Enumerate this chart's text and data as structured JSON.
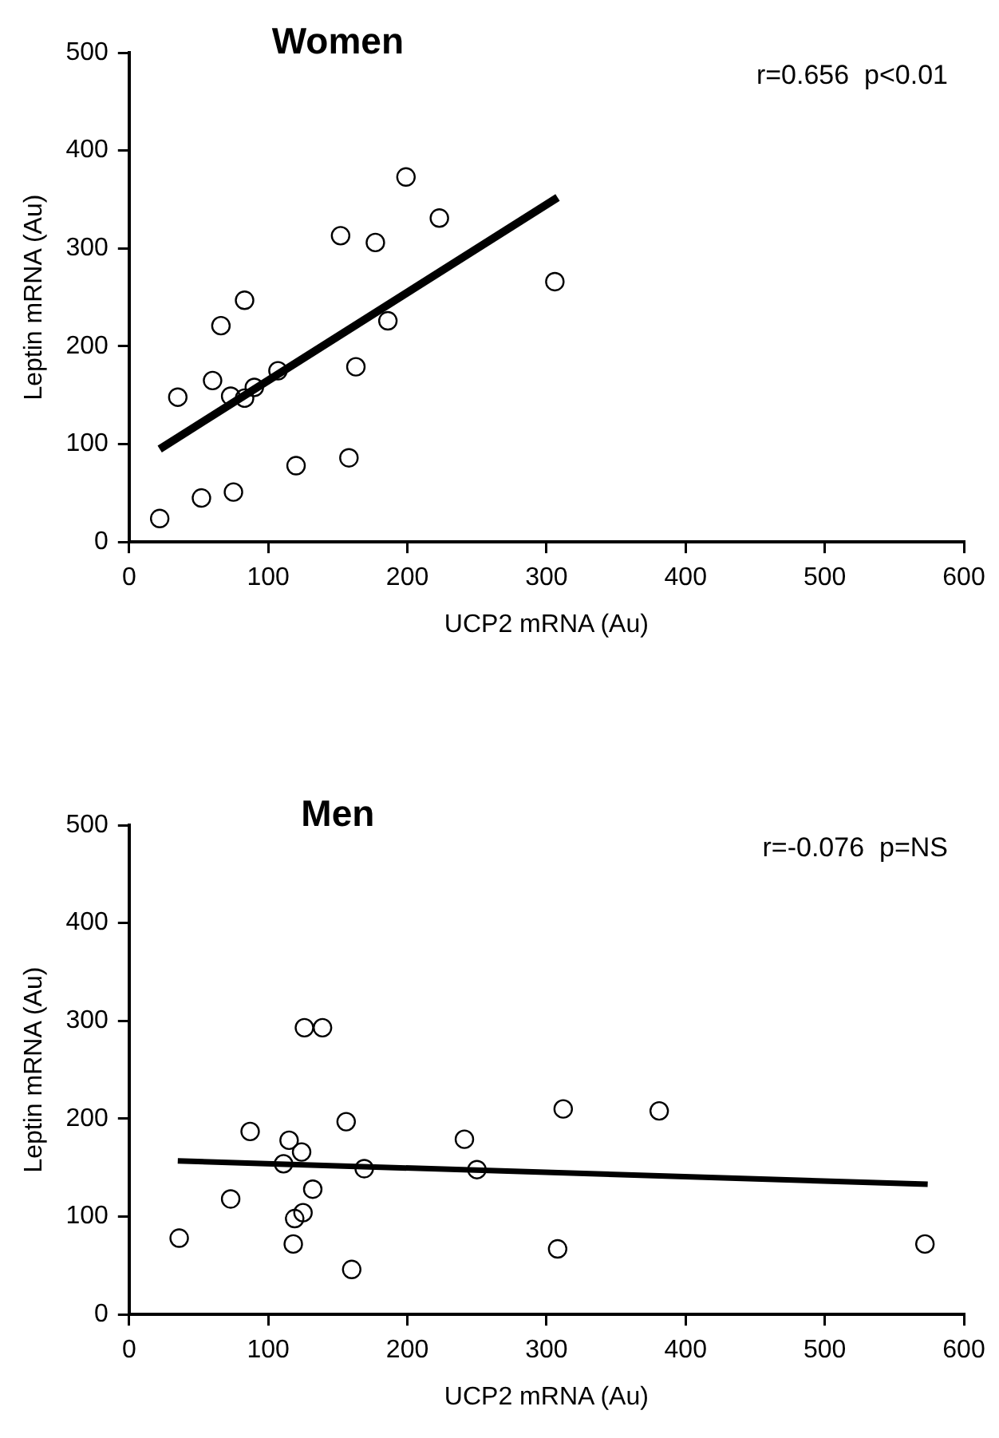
{
  "chart_data": [
    {
      "type": "scatter",
      "title": "Women",
      "xlabel": "UCP2 mRNA (Au)",
      "ylabel": "Leptin mRNA (Au)",
      "annotations": [
        "r=0.656  p<0.01"
      ],
      "xlim": [
        0,
        600
      ],
      "xticks": [
        0,
        100,
        200,
        300,
        400,
        500,
        600
      ],
      "ylim": [
        0,
        500
      ],
      "yticks": [
        0,
        100,
        200,
        300,
        400,
        500
      ],
      "series": [
        {
          "type": "scatter",
          "marker": "circle",
          "color": "#000000",
          "x": [
            22,
            35,
            52,
            60,
            66,
            73,
            75,
            83,
            83,
            90,
            107,
            120,
            152,
            158,
            163,
            177,
            186,
            199,
            223,
            306
          ],
          "values": [
            24,
            148,
            45,
            165,
            221,
            149,
            51,
            247,
            147,
            158,
            175,
            78,
            313,
            86,
            179,
            306,
            226,
            373,
            331,
            266
          ]
        },
        {
          "type": "line",
          "marker": "none",
          "color": "#000000",
          "x": [
            22,
            308
          ],
          "values": [
            95,
            352
          ]
        }
      ]
    },
    {
      "type": "scatter",
      "title": "Men",
      "xlabel": "UCP2 mRNA (Au)",
      "ylabel": "Leptin mRNA (Au)",
      "annotations": [
        "r=-0.076  p=NS"
      ],
      "xlim": [
        0,
        600
      ],
      "xticks": [
        0,
        100,
        200,
        300,
        400,
        500,
        600
      ],
      "ylim": [
        0,
        500
      ],
      "yticks": [
        0,
        100,
        200,
        300,
        400,
        500
      ],
      "series": [
        {
          "type": "scatter",
          "marker": "circle",
          "color": "#000000",
          "x": [
            36,
            73,
            87,
            111,
            115,
            124,
            126,
            139,
            132,
            125,
            119,
            118,
            156,
            160,
            169,
            241,
            250,
            312,
            381,
            308,
            572
          ],
          "values": [
            78,
            118,
            187,
            154,
            178,
            166,
            293,
            293,
            128,
            104,
            98,
            72,
            197,
            46,
            149,
            179,
            148,
            210,
            208,
            67,
            72
          ]
        },
        {
          "type": "line",
          "marker": "none",
          "color": "#000000",
          "x": [
            35,
            574
          ],
          "values": [
            157,
            133
          ]
        }
      ]
    }
  ]
}
